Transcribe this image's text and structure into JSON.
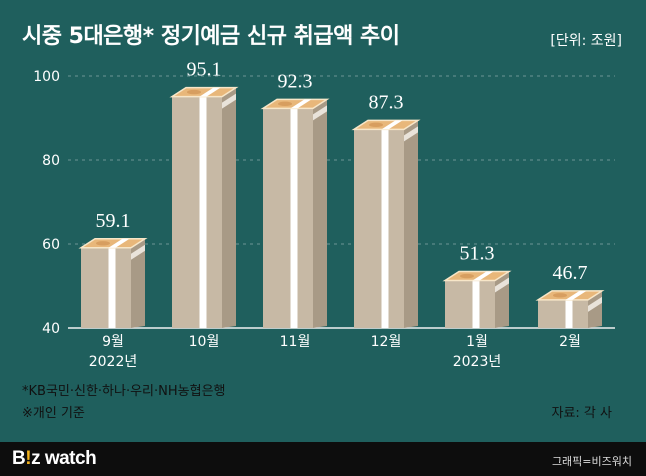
{
  "header": {
    "title": "시중 5대은행* 정기예금 신규 취급액 추이",
    "unit": "[단위: 조원]"
  },
  "chart_data": {
    "type": "bar",
    "categories": [
      "9월",
      "10월",
      "11월",
      "12월",
      "1월",
      "2월"
    ],
    "sublabels": [
      "2022년",
      "",
      "",
      "",
      "2023년",
      ""
    ],
    "values": [
      59.1,
      95.1,
      92.3,
      87.3,
      51.3,
      46.7
    ],
    "value_labels": [
      "59.1",
      "95.1",
      "92.3",
      "87.3",
      "51.3",
      "46.7"
    ],
    "yticks": [
      "40",
      "60",
      "80",
      "100"
    ],
    "ylim": [
      40,
      100
    ],
    "grid": true
  },
  "notes": {
    "banks": "*KB국민·신한·하나·우리·NH농협은행",
    "basis": "※개인 기준",
    "source": "자료: 각 사"
  },
  "footer": {
    "logo_b": "B",
    "logo_bang": "!",
    "logo_rest": "z watch",
    "credit": "그래픽=비즈워치"
  },
  "colors": {
    "background": "#1f5f5d",
    "money_front": "#c7b9a5",
    "money_side": "#a89a86",
    "money_top": "#e8b77a",
    "band": "#ffffff",
    "footer": "#0d0d0d"
  }
}
